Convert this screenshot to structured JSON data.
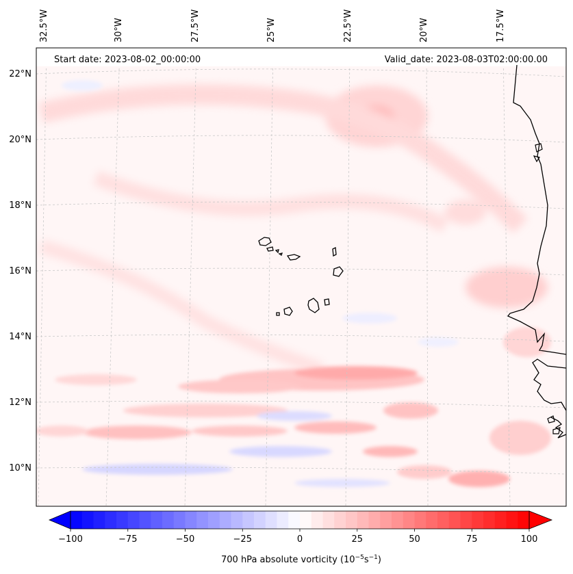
{
  "header": {
    "start_date": "Start date: 2023-08-02_00:00:00",
    "valid_date": "Valid_date: 2023-08-03T02:00:00.00"
  },
  "lon_labels": [
    "32.5°W",
    "30°W",
    "27.5°W",
    "25°W",
    "22.5°W",
    "20°W",
    "17.5°W"
  ],
  "lat_labels": [
    "22°N",
    "20°N",
    "18°N",
    "16°N",
    "14°N",
    "12°N",
    "10°N"
  ],
  "colorbar": {
    "label_main": "700 hPa absolute vorticity (10",
    "label_exp1": "−5",
    "label_mid": "s",
    "label_exp2": "−1",
    "label_end": ")",
    "ticks": [
      "−100",
      "−75",
      "−50",
      "−25",
      "0",
      "25",
      "50",
      "75",
      "100"
    ],
    "min": -100,
    "max": 100,
    "colormap": "bwr",
    "extend": "both"
  },
  "colors": {
    "negative_max": "#0000ff",
    "neutral": "#ffffff",
    "positive_max": "#ff0000",
    "coastline": "#000000",
    "gridline": "#cccccc"
  }
}
